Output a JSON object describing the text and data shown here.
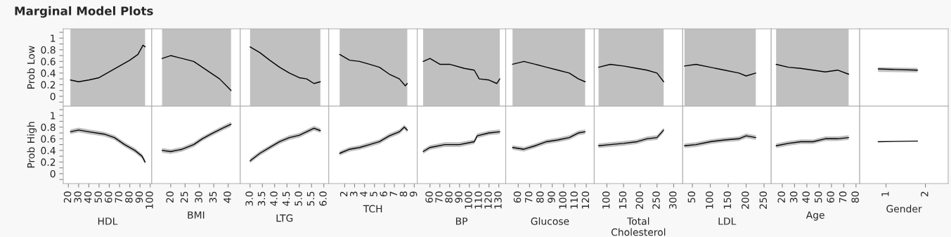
{
  "chart_data": [
    {
      "type": "line",
      "title": "Marginal Model Plots",
      "ylabel": "Prob Low",
      "x": [
        22,
        30,
        40,
        50,
        60,
        70,
        80,
        88,
        93,
        95
      ],
      "xlim": [
        15,
        101.5
      ],
      "ylim": [
        -0.17,
        1.16
      ],
      "yticks": [
        {
          "value": -0.1,
          "label": null
        },
        0,
        {
          "value": 0.1,
          "label": null
        },
        0.2,
        {
          "value": 0.3,
          "label": null
        },
        0.4,
        {
          "value": 0.5,
          "label": null
        },
        0.6,
        {
          "value": 0.7,
          "label": null
        },
        0.8,
        {
          "value": 0.9,
          "label": null
        },
        1,
        {
          "value": 1.1,
          "label": null
        }
      ],
      "tick_labels": "y",
      "series": [
        {
          "color": "#000000",
          "values": [
            0.28,
            0.25,
            0.28,
            0.32,
            0.42,
            0.52,
            0.62,
            0.72,
            0.88,
            0.85
          ],
          "lower": [
            -0.17,
            -0.17,
            -0.17,
            -0.17,
            -0.17,
            -0.17,
            -0.17,
            -0.17,
            -0.17,
            -0.17
          ],
          "upper": [
            1.16,
            1.16,
            1.16,
            1.16,
            1.16,
            1.16,
            1.16,
            1.16,
            1.16,
            1.16
          ]
        }
      ]
    },
    {
      "type": "line",
      "x": [
        17,
        20,
        24,
        28,
        31,
        34,
        37,
        40,
        41
      ],
      "xlim": [
        13.4,
        44.2
      ],
      "ylim": [
        -0.17,
        1.16
      ],
      "tick_labels": false,
      "series": [
        {
          "color": "#000000",
          "values": [
            0.65,
            0.7,
            0.65,
            0.6,
            0.5,
            0.4,
            0.3,
            0.15,
            0.1
          ],
          "lower": [
            -0.17,
            -0.17,
            -0.17,
            -0.17,
            -0.17,
            -0.17,
            -0.17,
            -0.17,
            -0.17
          ],
          "upper": [
            1.16,
            1.16,
            1.16,
            1.16,
            1.16,
            1.16,
            1.16,
            1.16,
            1.16
          ]
        }
      ]
    },
    {
      "type": "line",
      "x": [
        3.0,
        3.4,
        3.8,
        4.2,
        4.6,
        5.0,
        5.3,
        5.6,
        5.86
      ],
      "xlim": [
        2.6,
        6.2
      ],
      "ylim": [
        -0.17,
        1.16
      ],
      "tick_labels": false,
      "series": [
        {
          "color": "#000000",
          "values": [
            0.85,
            0.75,
            0.62,
            0.5,
            0.4,
            0.32,
            0.3,
            0.22,
            0.25
          ],
          "lower": [
            -0.17,
            -0.17,
            -0.17,
            -0.17,
            -0.17,
            -0.17,
            -0.17,
            -0.17,
            -0.17
          ],
          "upper": [
            1.16,
            1.16,
            1.16,
            1.16,
            1.16,
            1.16,
            1.16,
            1.16,
            1.16
          ]
        }
      ]
    },
    {
      "type": "line",
      "x": [
        1.5,
        2.5,
        3.5,
        4.5,
        5.5,
        6.5,
        7.5,
        8.1,
        8.3
      ],
      "xlim": [
        0.4,
        9.3
      ],
      "ylim": [
        -0.17,
        1.16
      ],
      "tick_labels": false,
      "series": [
        {
          "color": "#000000",
          "values": [
            0.72,
            0.62,
            0.6,
            0.55,
            0.5,
            0.38,
            0.3,
            0.18,
            0.22
          ],
          "lower": [
            -0.17,
            -0.17,
            -0.17,
            -0.17,
            -0.17,
            -0.17,
            -0.17,
            -0.17,
            -0.17
          ],
          "upper": [
            1.16,
            1.16,
            1.16,
            1.16,
            1.16,
            1.16,
            1.16,
            1.16,
            1.16
          ]
        }
      ]
    },
    {
      "type": "line",
      "x": [
        53,
        60,
        70,
        80,
        95,
        105,
        110,
        120,
        128,
        131
      ],
      "xlim": [
        47,
        137
      ],
      "ylim": [
        -0.17,
        1.16
      ],
      "tick_labels": false,
      "series": [
        {
          "color": "#000000",
          "values": [
            0.6,
            0.65,
            0.55,
            0.55,
            0.48,
            0.45,
            0.3,
            0.28,
            0.22,
            0.3
          ],
          "lower": [
            -0.17,
            -0.17,
            -0.17,
            -0.17,
            -0.17,
            -0.17,
            -0.17,
            -0.17,
            -0.17,
            -0.17
          ],
          "upper": [
            1.16,
            1.16,
            1.16,
            1.16,
            1.16,
            1.16,
            1.16,
            1.16,
            1.16,
            1.16
          ]
        }
      ]
    },
    {
      "type": "line",
      "x": [
        55,
        65,
        75,
        85,
        95,
        105,
        113,
        119
      ],
      "xlim": [
        49,
        127
      ],
      "ylim": [
        -0.17,
        1.16
      ],
      "tick_labels": false,
      "series": [
        {
          "color": "#000000",
          "values": [
            0.55,
            0.6,
            0.55,
            0.5,
            0.45,
            0.4,
            0.3,
            0.25
          ],
          "lower": [
            -0.17,
            -0.17,
            -0.17,
            -0.17,
            -0.17,
            -0.17,
            -0.17,
            -0.17
          ],
          "upper": [
            1.16,
            1.16,
            1.16,
            1.16,
            1.16,
            1.16,
            1.16,
            1.16
          ]
        }
      ]
    },
    {
      "type": "line",
      "x": [
        75,
        110,
        150,
        190,
        220,
        250,
        270
      ],
      "xlim": [
        62,
        327
      ],
      "ylim": [
        -0.17,
        1.16
      ],
      "tick_labels": false,
      "series": [
        {
          "color": "#000000",
          "values": [
            0.5,
            0.55,
            0.52,
            0.48,
            0.45,
            0.4,
            0.25
          ],
          "lower": [
            -0.17,
            -0.17,
            -0.17,
            -0.17,
            -0.17,
            -0.17,
            -0.17
          ],
          "upper": [
            1.16,
            1.16,
            1.16,
            1.16,
            1.16,
            1.16,
            1.16
          ]
        }
      ]
    },
    {
      "type": "line",
      "x": [
        28,
        60,
        100,
        140,
        180,
        200,
        227
      ],
      "xlim": [
        23,
        270
      ],
      "ylim": [
        -0.17,
        1.16
      ],
      "tick_labels": false,
      "series": [
        {
          "color": "#000000",
          "values": [
            0.52,
            0.55,
            0.5,
            0.45,
            0.4,
            0.35,
            0.4
          ],
          "lower": [
            -0.17,
            -0.17,
            -0.17,
            -0.17,
            -0.17,
            -0.17,
            -0.17
          ],
          "upper": [
            1.16,
            1.16,
            1.16,
            1.16,
            1.16,
            1.16,
            1.16
          ]
        }
      ]
    },
    {
      "type": "line",
      "x": [
        15,
        25,
        35,
        45,
        55,
        65,
        74
      ],
      "xlim": [
        11,
        83
      ],
      "ylim": [
        -0.17,
        1.16
      ],
      "tick_labels": false,
      "series": [
        {
          "color": "#000000",
          "values": [
            0.55,
            0.5,
            0.48,
            0.45,
            0.42,
            0.45,
            0.38
          ],
          "lower": [
            -0.17,
            -0.17,
            -0.17,
            -0.17,
            -0.17,
            -0.17,
            -0.17
          ],
          "upper": [
            1.16,
            1.16,
            1.16,
            1.16,
            1.16,
            1.16,
            1.16
          ]
        }
      ]
    },
    {
      "type": "line",
      "x": [
        0.8,
        1.8
      ],
      "xlim": [
        0.33,
        2.58
      ],
      "ylim": [
        -0.17,
        1.16
      ],
      "tick_labels": false,
      "series": [
        {
          "color": "#000000",
          "values": [
            0.47,
            0.45
          ],
          "lower": [
            0.42,
            0.41
          ],
          "upper": [
            0.5,
            0.49
          ]
        }
      ]
    },
    {
      "type": "line",
      "ylabel": "Prob High",
      "xlabel": "HDL",
      "x": [
        22,
        30,
        40,
        55,
        65,
        75,
        85,
        92,
        95
      ],
      "xlim": [
        15,
        101.5
      ],
      "xticks": [
        20,
        30,
        40,
        50,
        60,
        70,
        80,
        90,
        100
      ],
      "ylim": [
        -0.17,
        1.16
      ],
      "yticks": [
        {
          "value": -0.1,
          "label": null
        },
        0,
        {
          "value": 0.1,
          "label": null
        },
        0.2,
        {
          "value": 0.3,
          "label": null
        },
        0.4,
        {
          "value": 0.5,
          "label": null
        },
        0.6,
        {
          "value": 0.7,
          "label": null
        },
        0.8,
        {
          "value": 0.9,
          "label": null
        },
        1,
        {
          "value": 1.1,
          "label": null
        }
      ],
      "series": [
        {
          "color": "#000000",
          "values": [
            0.72,
            0.75,
            0.72,
            0.68,
            0.62,
            0.5,
            0.4,
            0.3,
            0.2
          ],
          "lower": [
            0.68,
            0.71,
            0.68,
            0.64,
            0.58,
            0.46,
            0.36,
            0.26,
            0.16
          ],
          "upper": [
            0.76,
            0.79,
            0.76,
            0.72,
            0.66,
            0.54,
            0.44,
            0.34,
            0.24
          ]
        }
      ]
    },
    {
      "type": "line",
      "xlabel": "BMI",
      "x": [
        17,
        20,
        24,
        28,
        31,
        34,
        38,
        41
      ],
      "xlim": [
        13.4,
        44.2
      ],
      "xticks": [
        20,
        25,
        30,
        35,
        40
      ],
      "ylim": [
        -0.17,
        1.16
      ],
      "tick_labels": "x",
      "series": [
        {
          "color": "#000000",
          "values": [
            0.4,
            0.38,
            0.42,
            0.5,
            0.6,
            0.68,
            0.78,
            0.85
          ],
          "lower": [
            0.36,
            0.34,
            0.38,
            0.46,
            0.56,
            0.64,
            0.74,
            0.81
          ],
          "upper": [
            0.44,
            0.42,
            0.46,
            0.54,
            0.64,
            0.72,
            0.82,
            0.89
          ]
        }
      ]
    },
    {
      "type": "line",
      "xlabel": "LTG",
      "x": [
        3.0,
        3.4,
        3.8,
        4.2,
        4.6,
        5.0,
        5.3,
        5.6,
        5.86
      ],
      "xlim": [
        2.6,
        6.2
      ],
      "xticks": [
        {
          "value": 3,
          "label": "3.0"
        },
        3.5,
        {
          "value": 4,
          "label": "4.0"
        },
        4.5,
        {
          "value": 5,
          "label": "5.0"
        },
        5.5,
        {
          "value": 6,
          "label": "6.0"
        }
      ],
      "ylim": [
        -0.17,
        1.16
      ],
      "tick_labels": "x",
      "series": [
        {
          "color": "#000000",
          "values": [
            0.22,
            0.35,
            0.45,
            0.55,
            0.62,
            0.66,
            0.72,
            0.78,
            0.74
          ],
          "lower": [
            0.18,
            0.31,
            0.41,
            0.51,
            0.58,
            0.62,
            0.68,
            0.74,
            0.7
          ],
          "upper": [
            0.26,
            0.39,
            0.49,
            0.59,
            0.66,
            0.7,
            0.76,
            0.82,
            0.78
          ]
        }
      ]
    },
    {
      "type": "line",
      "xlabel": "TCH",
      "x": [
        1.5,
        2.5,
        3.5,
        4.5,
        5.5,
        6.5,
        7.5,
        8.0,
        8.3
      ],
      "xlim": [
        0.4,
        9.3
      ],
      "xticks": [
        2,
        3,
        4,
        5,
        6,
        7,
        8,
        9
      ],
      "ylim": [
        -0.17,
        1.16
      ],
      "tick_labels": "x",
      "series": [
        {
          "color": "#000000",
          "values": [
            0.35,
            0.42,
            0.45,
            0.5,
            0.55,
            0.65,
            0.72,
            0.8,
            0.75
          ],
          "lower": [
            0.31,
            0.38,
            0.41,
            0.46,
            0.51,
            0.61,
            0.68,
            0.76,
            0.71
          ],
          "upper": [
            0.39,
            0.46,
            0.49,
            0.54,
            0.59,
            0.69,
            0.76,
            0.84,
            0.79
          ]
        }
      ]
    },
    {
      "type": "line",
      "xlabel": "BP",
      "x": [
        53,
        60,
        75,
        90,
        105,
        108,
        120,
        131
      ],
      "xlim": [
        47,
        137
      ],
      "xticks": [
        60,
        70,
        80,
        90,
        100,
        110,
        120,
        130
      ],
      "ylim": [
        -0.17,
        1.16
      ],
      "tick_labels": "x",
      "series": [
        {
          "color": "#000000",
          "values": [
            0.38,
            0.45,
            0.5,
            0.5,
            0.55,
            0.65,
            0.7,
            0.72
          ],
          "lower": [
            0.34,
            0.41,
            0.46,
            0.46,
            0.51,
            0.61,
            0.66,
            0.68
          ],
          "upper": [
            0.42,
            0.49,
            0.54,
            0.54,
            0.59,
            0.69,
            0.74,
            0.76
          ]
        }
      ]
    },
    {
      "type": "line",
      "xlabel": "Glucose",
      "x": [
        55,
        65,
        75,
        85,
        95,
        105,
        113,
        119
      ],
      "xlim": [
        49,
        127
      ],
      "xticks": [
        60,
        70,
        80,
        90,
        100,
        110,
        120
      ],
      "ylim": [
        -0.17,
        1.16
      ],
      "tick_labels": "x",
      "series": [
        {
          "color": "#000000",
          "values": [
            0.45,
            0.42,
            0.48,
            0.55,
            0.58,
            0.62,
            0.7,
            0.72
          ],
          "lower": [
            0.41,
            0.38,
            0.44,
            0.51,
            0.54,
            0.58,
            0.66,
            0.68
          ],
          "upper": [
            0.49,
            0.46,
            0.52,
            0.59,
            0.62,
            0.66,
            0.74,
            0.76
          ]
        }
      ]
    },
    {
      "type": "line",
      "xlabel": "Total\nCholesterol",
      "x": [
        75,
        110,
        150,
        190,
        220,
        250,
        270
      ],
      "xlim": [
        62,
        327
      ],
      "xticks": [
        100,
        150,
        200,
        250,
        300
      ],
      "ylim": [
        -0.17,
        1.16
      ],
      "tick_labels": "x",
      "series": [
        {
          "color": "#000000",
          "values": [
            0.48,
            0.5,
            0.52,
            0.55,
            0.6,
            0.62,
            0.75
          ],
          "lower": [
            0.44,
            0.46,
            0.48,
            0.51,
            0.56,
            0.58,
            0.71
          ],
          "upper": [
            0.52,
            0.54,
            0.56,
            0.59,
            0.64,
            0.66,
            0.79
          ]
        }
      ]
    },
    {
      "type": "line",
      "xlabel": "LDL",
      "x": [
        28,
        60,
        100,
        140,
        180,
        200,
        227
      ],
      "xlim": [
        23,
        270
      ],
      "xticks": [
        50,
        100,
        150,
        200,
        250
      ],
      "ylim": [
        -0.17,
        1.16
      ],
      "tick_labels": "x",
      "series": [
        {
          "color": "#000000",
          "values": [
            0.48,
            0.5,
            0.55,
            0.58,
            0.6,
            0.65,
            0.62
          ],
          "lower": [
            0.44,
            0.46,
            0.51,
            0.54,
            0.56,
            0.61,
            0.58
          ],
          "upper": [
            0.52,
            0.54,
            0.59,
            0.62,
            0.64,
            0.69,
            0.66
          ]
        }
      ]
    },
    {
      "type": "line",
      "xlabel": "Age",
      "x": [
        15,
        25,
        35,
        45,
        55,
        65,
        74
      ],
      "xlim": [
        11,
        83
      ],
      "xticks": [
        20,
        30,
        40,
        50,
        60,
        70,
        80
      ],
      "ylim": [
        -0.17,
        1.16
      ],
      "tick_labels": "x",
      "series": [
        {
          "color": "#000000",
          "values": [
            0.48,
            0.52,
            0.55,
            0.55,
            0.6,
            0.6,
            0.62
          ],
          "lower": [
            0.44,
            0.48,
            0.51,
            0.51,
            0.56,
            0.56,
            0.58
          ],
          "upper": [
            0.52,
            0.56,
            0.59,
            0.59,
            0.64,
            0.64,
            0.66
          ]
        }
      ]
    },
    {
      "type": "line",
      "xlabel": "Gender",
      "x": [
        0.8,
        1.8
      ],
      "xlim": [
        0.33,
        2.58
      ],
      "xticks": [
        1,
        2
      ],
      "ylim": [
        -0.17,
        1.16
      ],
      "tick_labels": "x",
      "series": [
        {
          "color": "#000000",
          "values": [
            0.55,
            0.56
          ]
        }
      ]
    }
  ]
}
